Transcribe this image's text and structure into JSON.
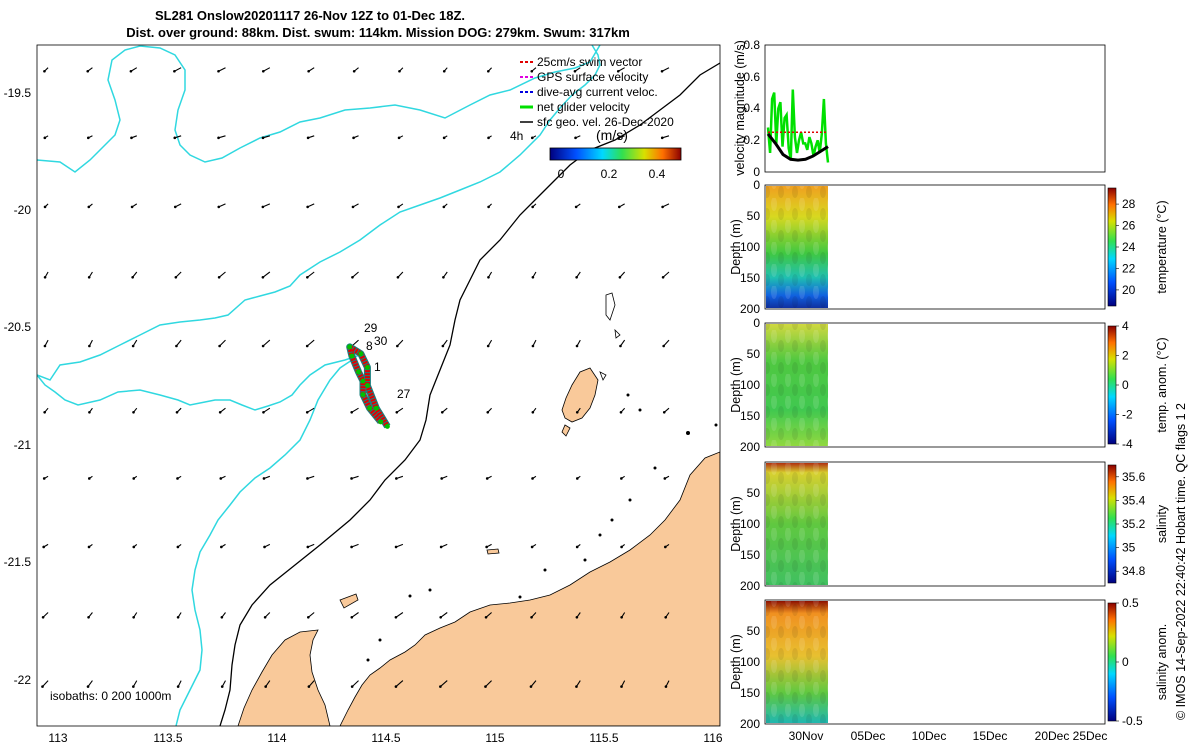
{
  "chart_data": [
    {
      "type": "map",
      "title_lines": [
        "SL281 Onslow20201117 26-Nov 12Z to 01-Dec 18Z.",
        "Dist. over ground: 88km. Dist. swum: 114km. Mission DOG: 279km. Swum: 317km"
      ],
      "x_ticks": [
        "113",
        "113.5",
        "114",
        "114.5",
        "115",
        "115.5",
        "116"
      ],
      "y_ticks": [
        "-19.5",
        "-20",
        "-20.5",
        "-21",
        "-21.5",
        "-22"
      ],
      "xlim": [
        112.95,
        116.03
      ],
      "ylim": [
        -22.2,
        -19.2
      ],
      "legend": [
        {
          "label": "25cm/s swim vector",
          "color": "#e00000"
        },
        {
          "label": "GPS surface velocity",
          "color": "#e000e0"
        },
        {
          "label": "dive-avg current veloc.",
          "color": "#0000e0"
        },
        {
          "label": "net glider velocity",
          "color": "#00e000"
        },
        {
          "label": "sfc geo. vel. 26-Dec-2020",
          "color": "#000000"
        }
      ],
      "legend_position": "top-right",
      "colorbar": {
        "label": "(m/s)",
        "ticks": [
          "0",
          "0.2",
          "0.4"
        ],
        "range": [
          0,
          0.5
        ]
      },
      "scale_label": "4h",
      "isobath_label": "isobaths: 0   200   1000m",
      "track_day_labels": [
        "29",
        "30",
        "8",
        "1",
        "27"
      ],
      "track": [
        {
          "x": 114.5,
          "y": -20.86
        },
        {
          "x": 114.45,
          "y": -20.8
        },
        {
          "x": 114.42,
          "y": -20.74
        },
        {
          "x": 114.42,
          "y": -20.68
        },
        {
          "x": 114.4,
          "y": -20.64
        },
        {
          "x": 114.37,
          "y": -20.57
        },
        {
          "x": 114.36,
          "y": -20.53
        },
        {
          "x": 114.41,
          "y": -20.56
        },
        {
          "x": 114.44,
          "y": -20.62
        },
        {
          "x": 114.44,
          "y": -20.7
        },
        {
          "x": 114.48,
          "y": -20.8
        },
        {
          "x": 114.53,
          "y": -20.88
        }
      ]
    },
    {
      "type": "line",
      "ylabel": "velocity magnitude (m/s)",
      "ylim": [
        0,
        0.8
      ],
      "y_ticks": [
        "0",
        "0.2",
        "0.4",
        "0.6",
        "0.8"
      ],
      "series": [
        {
          "color": "#00e000",
          "values": [
            0.28,
            0.12,
            0.46,
            0.5,
            0.18,
            0.4,
            0.44,
            0.16,
            0.34,
            0.36,
            0.15,
            0.08,
            0.52,
            0.22,
            0.12,
            0.2,
            0.25,
            0.18,
            0.18,
            0.14,
            0.22,
            0.18,
            0.1,
            0.16,
            0.2,
            0.12,
            0.24,
            0.46,
            0.18,
            0.06
          ]
        },
        {
          "color": "#000000",
          "values": [
            0.24,
            0.18,
            0.11,
            0.08,
            0.075,
            0.08,
            0.1,
            0.13,
            0.16
          ]
        },
        {
          "color": "#e00000",
          "values": [
            0.25,
            0.25,
            0.25,
            0.25,
            0.25,
            0.25,
            0.25,
            0.25,
            0.25
          ]
        }
      ]
    },
    {
      "type": "heatmap",
      "ylabel": "Depth (m)",
      "y_ticks": [
        "0",
        "50",
        "100",
        "150",
        "200"
      ],
      "colorbar_label": "temperature (°C)",
      "colorbar_ticks": [
        "20",
        "22",
        "24",
        "26",
        "28"
      ],
      "colorbar_range": [
        18.5,
        29.5
      ]
    },
    {
      "type": "heatmap",
      "ylabel": "Depth (m)",
      "y_ticks": [
        "0",
        "50",
        "100",
        "150",
        "200"
      ],
      "colorbar_label": "temp. anom. (°C)",
      "colorbar_ticks": [
        "-4",
        "-2",
        "0",
        "2",
        "4"
      ],
      "colorbar_range": [
        -4,
        4
      ]
    },
    {
      "type": "heatmap",
      "ylabel": "Depth (m)",
      "y_ticks": [
        "50",
        "100",
        "150",
        "200"
      ],
      "colorbar_label": "salinity",
      "colorbar_ticks": [
        "34.8",
        "35",
        "35.2",
        "35.4",
        "35.6"
      ],
      "colorbar_range": [
        34.7,
        35.7
      ]
    },
    {
      "type": "heatmap",
      "ylabel": "Depth (m)",
      "y_ticks": [
        "50",
        "100",
        "150",
        "200"
      ],
      "colorbar_label": "salinity anom.",
      "colorbar_ticks": [
        "-0.5",
        "0",
        "0.5"
      ],
      "colorbar_range": [
        -0.5,
        0.5
      ],
      "x_ticks": [
        "30Nov",
        "05Dec",
        "10Dec",
        "15Dec",
        "20Dec",
        "25Dec"
      ]
    }
  ],
  "footer": "© IMOS 14-Sep-2022 22:40:42 Hobart time. QC flags 1  2"
}
